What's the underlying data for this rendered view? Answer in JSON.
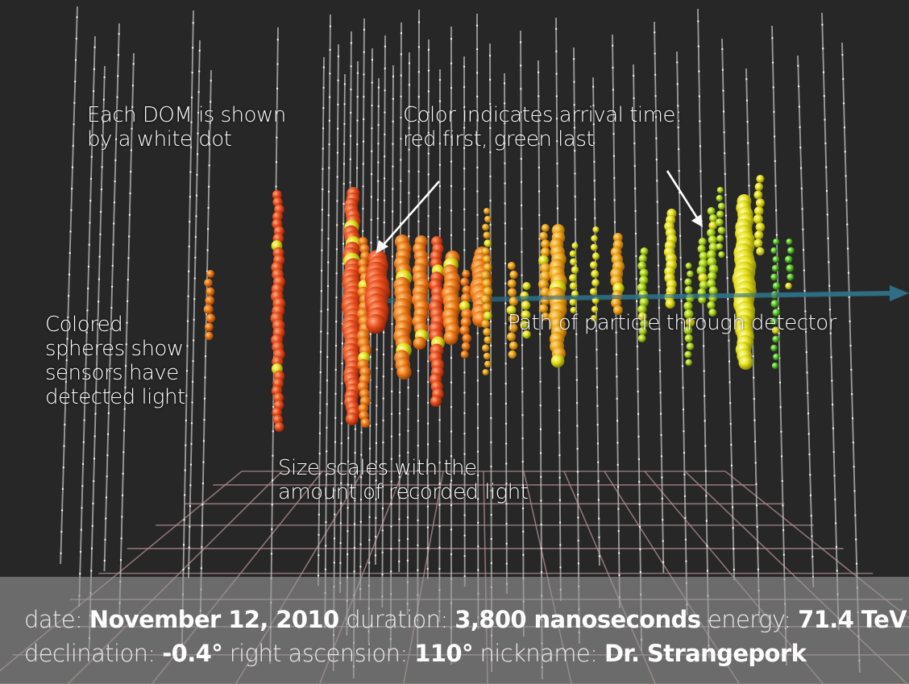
{
  "annotations": {
    "dom_label": [
      "Each DOM is shown",
      "by a white dot"
    ],
    "color_label": [
      "Color indicates arrival time:",
      "red first, green last"
    ],
    "spheres_label": [
      "Colored",
      "spheres show",
      "sensors have",
      "detected light"
    ],
    "size_label": [
      "Size scales with the",
      "amount of recorded light"
    ],
    "path_label": "Path of particle through detector"
  },
  "event_info": {
    "date_key": "date:",
    "date_value": "November 12, 2010",
    "duration_key": "duration:",
    "duration_value": "3,800 nanoseconds",
    "energy_key": "energy:",
    "energy_value": "71.4 TeV",
    "declination_key": "declination:",
    "declination_value": "-0.4°",
    "ra_key": "right ascension:",
    "ra_value": "110°",
    "nickname_key": "nickname:",
    "nickname_value": "Dr. Strangepork"
  },
  "colors": {
    "background": "#272727",
    "string": "#bdbdbd",
    "dom_dot": "#ffffff",
    "grid": "#b08e92",
    "track": "#2f6f86",
    "early": "#e8501e",
    "mid": "#f08a1c",
    "late_yellow": "#e8e31c",
    "last_green": "#5fc62a",
    "panel": "#969696"
  }
}
